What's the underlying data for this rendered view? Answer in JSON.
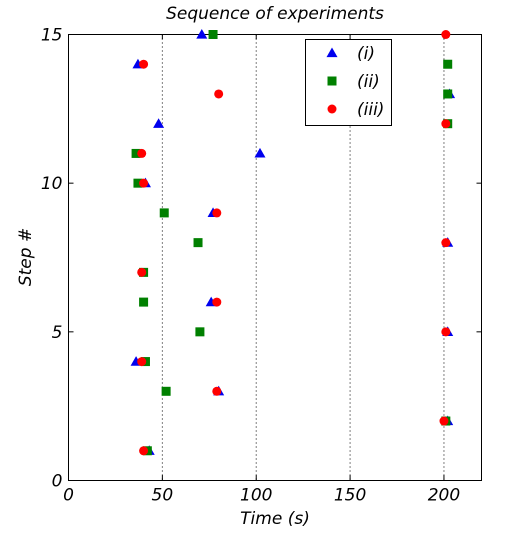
{
  "chart_data": {
    "type": "scatter",
    "title": "Sequence of experiments",
    "xlabel": "Time (s)",
    "ylabel": "Step #",
    "xlim": [
      0,
      220
    ],
    "ylim": [
      0,
      15
    ],
    "xticks": [
      0,
      50,
      100,
      150,
      200
    ],
    "yticks": [
      0,
      5,
      10,
      15
    ],
    "vlines": [
      50,
      100,
      150,
      200
    ],
    "grid": false,
    "legend_position": "top-right",
    "series": [
      {
        "name": "(i)",
        "marker": "triangle",
        "color": "#0000ee",
        "points": [
          {
            "x": 37,
            "y": 14
          },
          {
            "x": 71,
            "y": 15
          },
          {
            "x": 48,
            "y": 12
          },
          {
            "x": 102,
            "y": 11
          },
          {
            "x": 41,
            "y": 10
          },
          {
            "x": 77,
            "y": 9
          },
          {
            "x": 76,
            "y": 6
          },
          {
            "x": 36,
            "y": 4
          },
          {
            "x": 80,
            "y": 3
          },
          {
            "x": 43,
            "y": 1
          },
          {
            "x": 203,
            "y": 13
          },
          {
            "x": 202,
            "y": 8
          },
          {
            "x": 202,
            "y": 5
          },
          {
            "x": 202,
            "y": 2
          }
        ]
      },
      {
        "name": "(ii)",
        "marker": "square",
        "color": "#008000",
        "points": [
          {
            "x": 77,
            "y": 15
          },
          {
            "x": 36,
            "y": 11
          },
          {
            "x": 37,
            "y": 10
          },
          {
            "x": 51,
            "y": 9
          },
          {
            "x": 69,
            "y": 8
          },
          {
            "x": 40,
            "y": 7
          },
          {
            "x": 40,
            "y": 6
          },
          {
            "x": 70,
            "y": 5
          },
          {
            "x": 41,
            "y": 4
          },
          {
            "x": 52,
            "y": 3
          },
          {
            "x": 42,
            "y": 1
          },
          {
            "x": 202,
            "y": 14
          },
          {
            "x": 202,
            "y": 13
          },
          {
            "x": 202,
            "y": 12
          },
          {
            "x": 201,
            "y": 2
          }
        ]
      },
      {
        "name": "(iii)",
        "marker": "circle",
        "color": "#ff0000",
        "points": [
          {
            "x": 40,
            "y": 14
          },
          {
            "x": 80,
            "y": 13
          },
          {
            "x": 39,
            "y": 11
          },
          {
            "x": 40,
            "y": 10
          },
          {
            "x": 79,
            "y": 9
          },
          {
            "x": 39,
            "y": 7
          },
          {
            "x": 79,
            "y": 6
          },
          {
            "x": 39,
            "y": 4
          },
          {
            "x": 79,
            "y": 3
          },
          {
            "x": 40,
            "y": 1
          },
          {
            "x": 201,
            "y": 15
          },
          {
            "x": 201,
            "y": 12
          },
          {
            "x": 201,
            "y": 8
          },
          {
            "x": 201,
            "y": 5
          },
          {
            "x": 200,
            "y": 2
          }
        ]
      }
    ]
  }
}
